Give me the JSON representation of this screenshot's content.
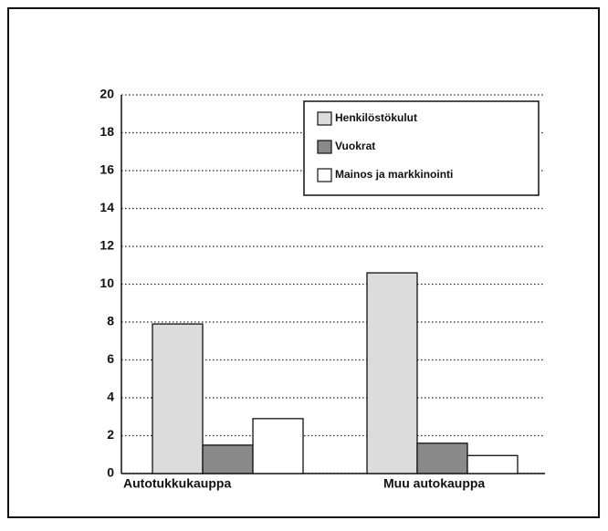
{
  "chart_data": {
    "type": "bar",
    "categories": [
      "Autotukkukauppa",
      "Muu autokauppa"
    ],
    "series": [
      {
        "name": "Henkilöstökulut",
        "color": "#dcdcdc",
        "values": [
          7.9,
          10.6
        ]
      },
      {
        "name": "Vuokrat",
        "color": "#8a8a8a",
        "values": [
          1.5,
          1.6
        ]
      },
      {
        "name": "Mainos ja markkinointi",
        "color": "#ffffff",
        "values": [
          2.9,
          0.95
        ]
      }
    ],
    "ylim": [
      0,
      20
    ],
    "yticks": [
      0,
      2,
      4,
      6,
      8,
      10,
      12,
      14,
      16,
      18,
      20
    ],
    "grid": true,
    "legend": "upper right"
  }
}
